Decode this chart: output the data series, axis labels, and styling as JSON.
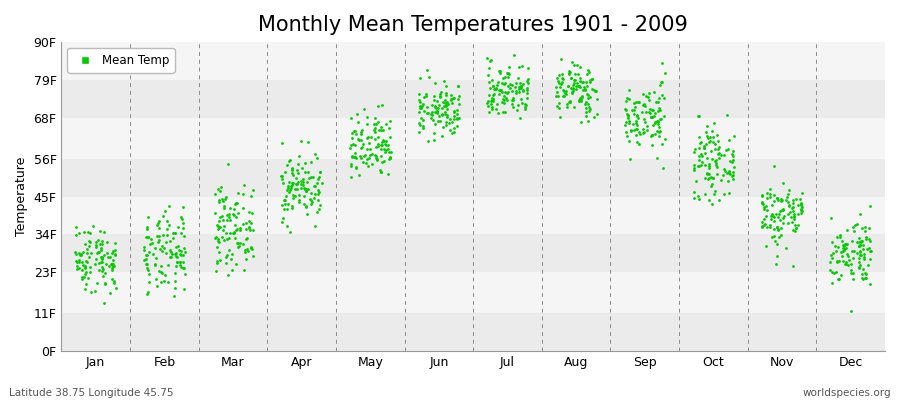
{
  "title": "Monthly Mean Temperatures 1901 - 2009",
  "ylabel": "Temperature",
  "ytick_labels": [
    "0F",
    "11F",
    "23F",
    "34F",
    "45F",
    "56F",
    "68F",
    "79F",
    "90F"
  ],
  "ytick_values": [
    0,
    11,
    23,
    34,
    45,
    56,
    68,
    79,
    90
  ],
  "month_labels": [
    "Jan",
    "Feb",
    "Mar",
    "Apr",
    "May",
    "Jun",
    "Jul",
    "Aug",
    "Sep",
    "Oct",
    "Nov",
    "Dec"
  ],
  "dot_color": "#00cc00",
  "background_color": "#f2f2f2",
  "band_color_odd": "#ebebeb",
  "band_color_even": "#f5f5f5",
  "legend_label": "Mean Temp",
  "footer_left": "Latitude 38.75 Longitude 45.75",
  "footer_right": "worldspecies.org",
  "title_fontsize": 15,
  "axis_fontsize": 9,
  "ylabel_fontsize": 9,
  "n_years": 109,
  "monthly_mean_F": [
    27,
    28,
    36,
    48,
    59,
    70,
    76,
    76,
    68,
    55,
    40,
    29
  ],
  "monthly_std_F": [
    5,
    6,
    6,
    5,
    5,
    4,
    4,
    4,
    5,
    5,
    5,
    5
  ]
}
